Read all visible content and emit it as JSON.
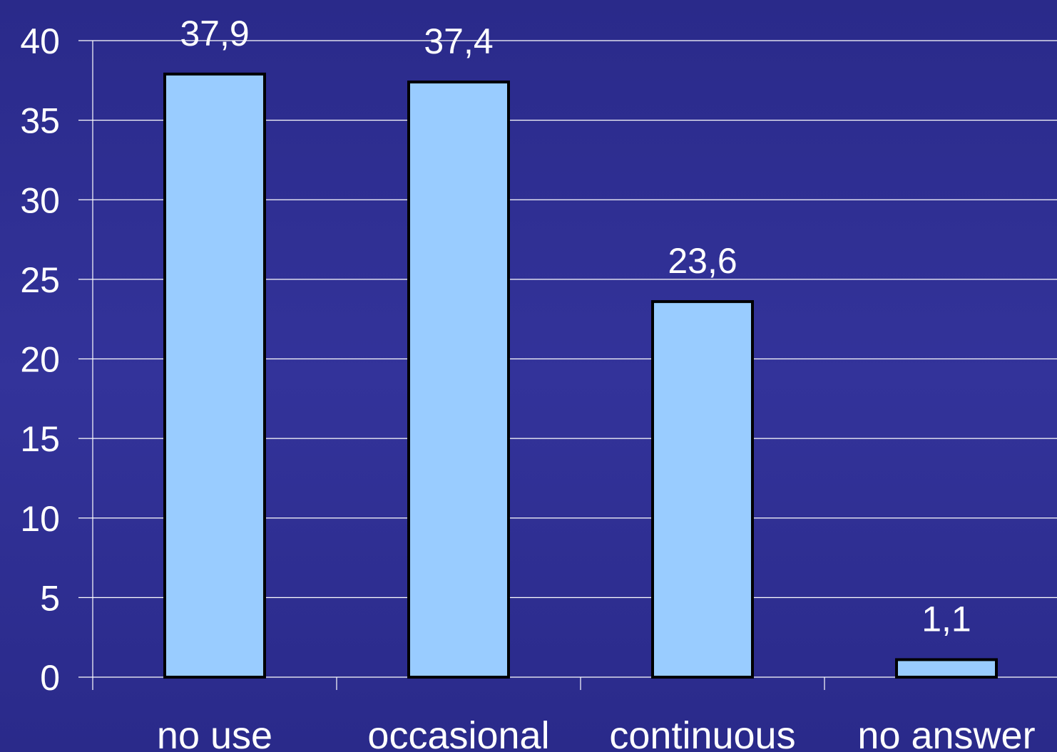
{
  "chart_data": {
    "type": "bar",
    "title": "",
    "xlabel": "",
    "ylabel": "",
    "categories": [
      "no use",
      "occasional",
      "continuous",
      "no answer"
    ],
    "values": [
      37.9,
      37.4,
      23.6,
      1.1
    ],
    "data_labels": [
      "37,9",
      "37,4",
      "23,6",
      "1,1"
    ],
    "ylim": [
      0,
      40
    ],
    "yticks": [
      0,
      5,
      10,
      15,
      20,
      25,
      30,
      35,
      40
    ],
    "ytick_labels": [
      "0",
      "5",
      "10",
      "15",
      "20",
      "25",
      "30",
      "35",
      "40"
    ],
    "grid": true,
    "legend": "none",
    "colors": {
      "background": "#2e2e94",
      "bar_fill": "#99ccff",
      "bar_stroke": "#000000",
      "gridline": "#ffffff",
      "text": "#ffffff"
    }
  }
}
